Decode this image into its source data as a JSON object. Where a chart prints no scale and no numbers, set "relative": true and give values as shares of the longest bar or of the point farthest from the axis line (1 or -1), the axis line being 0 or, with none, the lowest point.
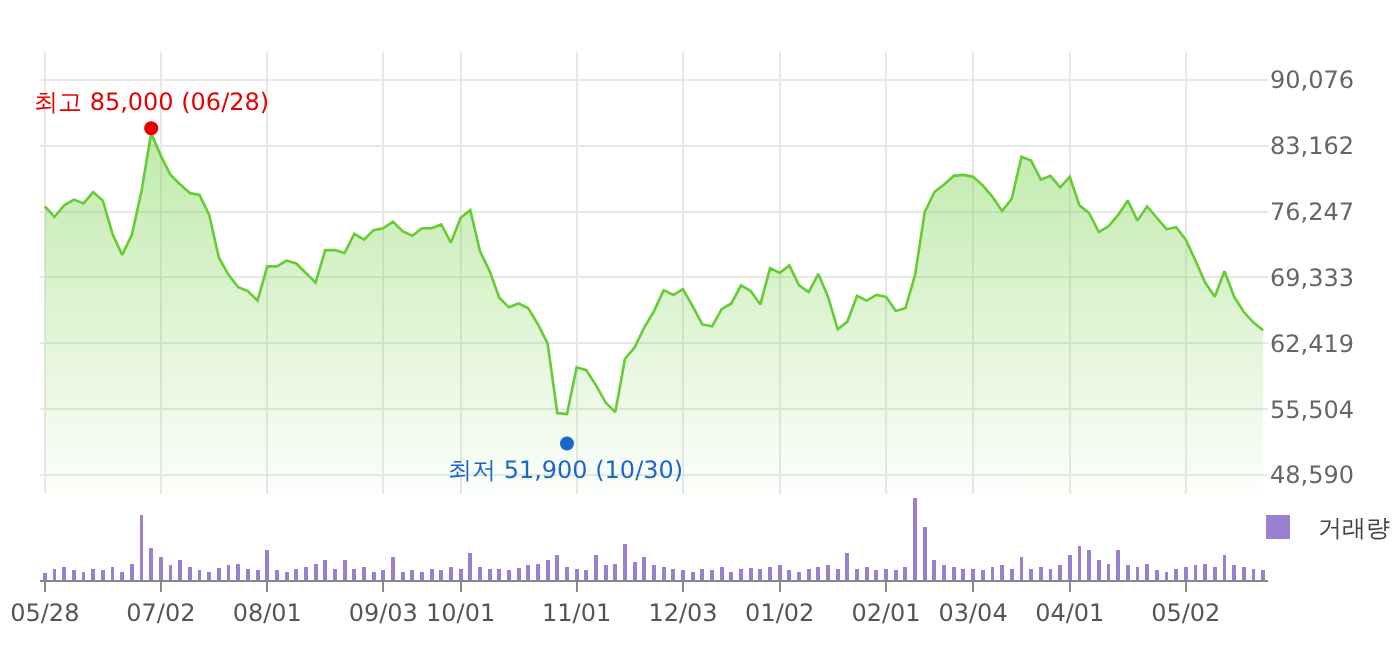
{
  "chart_data": [
    {
      "type": "area",
      "categories": [
        null,
        null,
        null,
        null,
        null,
        null,
        null,
        null,
        null,
        null,
        null,
        null,
        null,
        null,
        null,
        null,
        null,
        null,
        null,
        null,
        null,
        null,
        null,
        null,
        null,
        null,
        null,
        null,
        null,
        null,
        null,
        null,
        null,
        null,
        null,
        null,
        null,
        null,
        null,
        null,
        null,
        null,
        null,
        null,
        null,
        null,
        null,
        null,
        null,
        null,
        null,
        null,
        null,
        null,
        null,
        null,
        null,
        null,
        null,
        null,
        null,
        null,
        null,
        null,
        null,
        null,
        null,
        null,
        null,
        null,
        null,
        null,
        null,
        null,
        null,
        null,
        null,
        null,
        null,
        null,
        null,
        null,
        null,
        null,
        null,
        null,
        null,
        null,
        null,
        null,
        null,
        null,
        null,
        null,
        null,
        null,
        null,
        null,
        null,
        null,
        null,
        null,
        null,
        null,
        null,
        null,
        null,
        null,
        null,
        null,
        null,
        null,
        null,
        null,
        null,
        null,
        null,
        null,
        null,
        null,
        null,
        null,
        null,
        null,
        null,
        null,
        null
      ],
      "series": [
        {
          "color": "#66cc33",
          "values": [
            76800,
            75700,
            76900,
            77500,
            77100,
            78300,
            77400,
            73900,
            71700,
            73800,
            78400,
            84500,
            82100,
            80100,
            79100,
            78200,
            78000,
            75900,
            71400,
            69600,
            68300,
            67900,
            66900,
            70500,
            70500,
            71100,
            70800,
            69800,
            68800,
            72200,
            72200,
            71900,
            73900,
            73300,
            74300,
            74500,
            75200,
            74200,
            73700,
            74500,
            74500,
            74900,
            73000,
            75600,
            76400,
            72100,
            70000,
            67200,
            66200,
            66600,
            66100,
            64400,
            62400,
            55100,
            55000,
            59900,
            59600,
            58000,
            56200,
            55200,
            60800,
            62000,
            64100,
            65800,
            68000,
            67500,
            68100,
            66300,
            64400,
            64200,
            66000,
            66600,
            68500,
            67900,
            66500,
            70300,
            69800,
            70600,
            68500,
            67800,
            69700,
            67300,
            63900,
            64700,
            67400,
            66900,
            67500,
            67300,
            65800,
            66100,
            69600,
            76200,
            78300,
            79100,
            80000,
            80100,
            79900,
            79000,
            77800,
            76300,
            77600,
            82000,
            81600,
            79600,
            80000,
            78800,
            79900,
            76900,
            76100,
            74100,
            74700,
            75900,
            77400,
            75300,
            76800,
            75600,
            74400,
            74600,
            73300,
            71100,
            68800,
            67300,
            70000,
            67300,
            65700,
            64600,
            63800
          ]
        }
      ],
      "ylim": [
        46600,
        93000
      ],
      "yticks": [
        {
          "value": 48590,
          "label": "48,590"
        },
        {
          "value": 55504,
          "label": "55,504"
        },
        {
          "value": 62419,
          "label": "62,419"
        },
        {
          "value": 69333,
          "label": "69,333"
        },
        {
          "value": 76247,
          "label": "76,247"
        },
        {
          "value": 83162,
          "label": "83,162"
        },
        {
          "value": 90076,
          "label": "90,076"
        }
      ],
      "grid": true,
      "tick_labels": "y",
      "annotations": [
        {
          "text": "최고 85,000 (06/28)",
          "y": 85000
        },
        {
          "text": "최저 51,900 (10/30)",
          "y": 51900
        }
      ]
    },
    {
      "type": "bar",
      "categories": [
        "05/28",
        null,
        null,
        null,
        null,
        null,
        null,
        null,
        null,
        null,
        null,
        null,
        "07/02",
        null,
        null,
        null,
        null,
        null,
        null,
        null,
        null,
        null,
        null,
        "08/01",
        null,
        null,
        null,
        null,
        null,
        null,
        null,
        null,
        null,
        null,
        null,
        "09/03",
        null,
        null,
        null,
        null,
        null,
        null,
        null,
        "10/01",
        null,
        null,
        null,
        null,
        null,
        null,
        null,
        null,
        null,
        null,
        null,
        "11/01",
        null,
        null,
        null,
        null,
        null,
        null,
        null,
        null,
        null,
        null,
        "12/03",
        null,
        null,
        null,
        null,
        null,
        null,
        null,
        null,
        null,
        "01/02",
        null,
        null,
        null,
        null,
        null,
        null,
        null,
        null,
        null,
        null,
        "02/01",
        null,
        null,
        null,
        null,
        null,
        null,
        null,
        null,
        "03/04",
        null,
        null,
        null,
        null,
        null,
        null,
        null,
        null,
        null,
        "04/01",
        null,
        null,
        null,
        null,
        null,
        null,
        null,
        null,
        null,
        null,
        null,
        "05/02",
        null,
        null,
        null,
        null,
        null,
        null,
        null,
        null
      ],
      "series": [
        {
          "name": "거래량",
          "color": "#9b7fd0",
          "values": [
            0.08,
            0.14,
            0.16,
            0.12,
            0.1,
            0.14,
            0.12,
            0.16,
            0.1,
            0.2,
            0.79,
            0.39,
            0.28,
            0.18,
            0.25,
            0.16,
            0.12,
            0.1,
            0.15,
            0.18,
            0.2,
            0.14,
            0.12,
            0.36,
            0.12,
            0.1,
            0.13,
            0.16,
            0.2,
            0.25,
            0.14,
            0.25,
            0.13,
            0.16,
            0.1,
            0.12,
            0.28,
            0.1,
            0.12,
            0.1,
            0.14,
            0.12,
            0.16,
            0.14,
            0.33,
            0.16,
            0.13,
            0.14,
            0.12,
            0.15,
            0.18,
            0.2,
            0.25,
            0.31,
            0.16,
            0.14,
            0.12,
            0.31,
            0.18,
            0.2,
            0.44,
            0.22,
            0.28,
            0.18,
            0.16,
            0.14,
            0.12,
            0.1,
            0.14,
            0.12,
            0.16,
            0.1,
            0.13,
            0.15,
            0.14,
            0.16,
            0.18,
            0.12,
            0.1,
            0.14,
            0.16,
            0.18,
            0.14,
            0.33,
            0.13,
            0.16,
            0.12,
            0.14,
            0.12,
            0.16,
            1.0,
            0.65,
            0.25,
            0.18,
            0.16,
            0.14,
            0.14,
            0.12,
            0.16,
            0.18,
            0.14,
            0.28,
            0.14,
            0.16,
            0.14,
            0.18,
            0.3,
            0.42,
            0.36,
            0.24,
            0.2,
            0.36,
            0.18,
            0.16,
            0.2,
            0.12,
            0.1,
            0.14,
            0.16,
            0.18,
            0.2,
            0.16,
            0.31,
            0.18,
            0.16,
            0.14,
            0.12
          ]
        }
      ],
      "relative": true,
      "legend": "top right",
      "tick_labels": "x"
    }
  ]
}
